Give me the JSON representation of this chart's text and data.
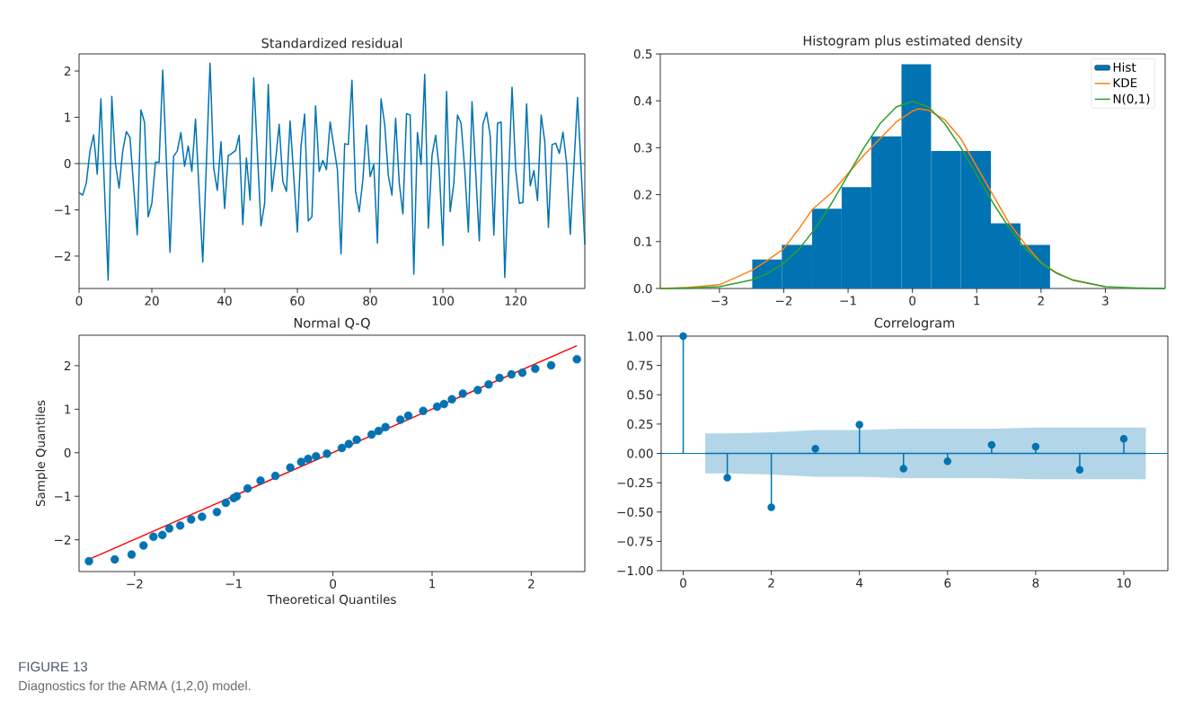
{
  "chart_data": [
    {
      "type": "line",
      "title": "Standardized residual",
      "xlim": [
        0,
        139
      ],
      "ylim": [
        -2.7,
        2.37
      ],
      "xticks": [
        0,
        20,
        40,
        60,
        80,
        100,
        120
      ],
      "yticks": [
        {
          "value": -2,
          "label": "−2"
        },
        {
          "value": -1,
          "label": "−1"
        },
        0,
        1,
        2
      ],
      "ref_lines": [
        {
          "axis": "y",
          "value": 0,
          "color": "#0173b2"
        }
      ],
      "series": [
        {
          "color": "#0173b2",
          "x": [
            0,
            1,
            2,
            3,
            4,
            5,
            6,
            7,
            8,
            9,
            10,
            11,
            12,
            13,
            14,
            15,
            16,
            17,
            18,
            19,
            20,
            21,
            22,
            23,
            24,
            25,
            26,
            27,
            28,
            29,
            30,
            31,
            32,
            33,
            34,
            35,
            36,
            37,
            38,
            39,
            40,
            41,
            42,
            43,
            44,
            45,
            46,
            47,
            48,
            49,
            50,
            51,
            52,
            53,
            54,
            55,
            56,
            57,
            58,
            59,
            60,
            61,
            62,
            63,
            64,
            65,
            66,
            67,
            68,
            69,
            70,
            71,
            72,
            73,
            74,
            75,
            76,
            77,
            78,
            79,
            80,
            81,
            82,
            83,
            84,
            85,
            86,
            87,
            88,
            89,
            90,
            91,
            92,
            93,
            94,
            95,
            96,
            97,
            98,
            99,
            100,
            101,
            102,
            103,
            104,
            105,
            106,
            107,
            108,
            109,
            110,
            111,
            112,
            113,
            114,
            115,
            116,
            117,
            118,
            119,
            120,
            121,
            122,
            123,
            124,
            125,
            126,
            127,
            128,
            129,
            130,
            131,
            132,
            133,
            134,
            135,
            136,
            137,
            138,
            139
          ],
          "values": [
            -0.63,
            -0.68,
            -0.42,
            0.27,
            0.62,
            -0.23,
            1.4,
            -0.56,
            -2.52,
            1.45,
            0.01,
            -0.53,
            0.27,
            0.69,
            0.56,
            -0.49,
            -1.54,
            1.16,
            0.89,
            -1.15,
            -0.86,
            0.03,
            0.03,
            2.02,
            0.05,
            -1.92,
            0.16,
            0.27,
            0.67,
            -0.06,
            0.38,
            -0.17,
            0.96,
            -0.6,
            -2.13,
            0.02,
            2.17,
            -0.1,
            -0.58,
            0.47,
            -0.97,
            0.17,
            0.22,
            0.28,
            0.61,
            -1.32,
            0.12,
            -0.79,
            1.85,
            0.25,
            -1.35,
            -0.86,
            1.71,
            -0.6,
            0.05,
            0.85,
            -0.39,
            -0.6,
            0.92,
            -0.28,
            -1.48,
            0.38,
            1.07,
            -1.24,
            -1.15,
            1.25,
            -0.17,
            0.07,
            -0.13,
            0.9,
            0.38,
            -0.13,
            -1.95,
            0.43,
            0.41,
            1.8,
            -0.6,
            -1.04,
            -0.35,
            0.83,
            -0.28,
            -0.02,
            -1.72,
            1.4,
            0.85,
            -0.26,
            -0.68,
            0.98,
            -0.42,
            -1.09,
            1.08,
            1.05,
            -2.39,
            0.67,
            -0.02,
            1.93,
            -1.4,
            0.17,
            0.61,
            -0.13,
            -1.77,
            1.56,
            -1.04,
            -0.42,
            1.05,
            0.87,
            -0.13,
            -1.48,
            1.34,
            -0.17,
            -1.67,
            0.85,
            1.11,
            0.6,
            -1.55,
            0.87,
            0.9,
            -2.46,
            -0.4,
            1.65,
            -0.13,
            -0.86,
            -0.84,
            1.29,
            -0.48,
            -0.15,
            -0.8,
            1.05,
            0.47,
            -1.38,
            0.41,
            0.44,
            0.22,
            0.68,
            0.01,
            -1.53,
            -0.05,
            1.43,
            -0.16,
            -1.75
          ]
        }
      ]
    },
    {
      "type": "histogram",
      "title": "Histogram plus estimated density",
      "xlim": [
        -3.92,
        3.93
      ],
      "ylim": [
        0,
        0.5
      ],
      "xticks": [
        {
          "value": -3,
          "label": "−3"
        },
        {
          "value": -2,
          "label": "−2"
        },
        {
          "value": -1,
          "label": "−1"
        },
        0,
        1,
        2,
        3
      ],
      "yticks": [
        {
          "value": 0,
          "label": "0.0"
        },
        0.1,
        0.2,
        0.3,
        0.4,
        0.5
      ],
      "bins": [
        -2.49,
        -2.03,
        -1.56,
        -1.1,
        -0.64,
        -0.17,
        0.29,
        0.75,
        1.22,
        1.68,
        2.14
      ],
      "legend": "top right",
      "series": [
        {
          "name": "Hist",
          "type": "histogram",
          "color": "#0173b2",
          "values": [
            0.062,
            0.093,
            0.17,
            0.216,
            0.324,
            0.478,
            0.293,
            0.293,
            0.139,
            0.093
          ]
        },
        {
          "name": "KDE",
          "type": "line",
          "color": "#ff7f0e",
          "x": [
            -3.92,
            -3.5,
            -3,
            -2.49,
            -2.25,
            -2,
            -1.75,
            -1.56,
            -1.25,
            -1,
            -0.75,
            -0.5,
            -0.25,
            0,
            0.1,
            0.25,
            0.5,
            0.75,
            1,
            1.25,
            1.5,
            1.75,
            2,
            2.25,
            2.5,
            3
          ],
          "values": [
            0.0,
            0.002,
            0.008,
            0.039,
            0.06,
            0.085,
            0.13,
            0.168,
            0.205,
            0.245,
            0.285,
            0.32,
            0.355,
            0.378,
            0.383,
            0.38,
            0.36,
            0.32,
            0.26,
            0.2,
            0.14,
            0.095,
            0.055,
            0.033,
            0.017,
            0.004
          ]
        },
        {
          "name": "N(0,1)",
          "type": "line",
          "color": "#2ca02c",
          "x": [
            -3.92,
            -3.5,
            -3,
            -2.5,
            -2.25,
            -2,
            -1.75,
            -1.5,
            -1.25,
            -1,
            -0.75,
            -0.5,
            -0.25,
            0,
            0.25,
            0.5,
            0.75,
            1,
            1.25,
            1.5,
            1.75,
            2,
            2.25,
            2.5,
            3,
            3.5,
            3.93
          ],
          "values": [
            0.0,
            0.001,
            0.004,
            0.018,
            0.032,
            0.054,
            0.086,
            0.13,
            0.183,
            0.242,
            0.301,
            0.352,
            0.387,
            0.399,
            0.387,
            0.352,
            0.301,
            0.242,
            0.183,
            0.13,
            0.086,
            0.054,
            0.032,
            0.018,
            0.004,
            0.001,
            0.0
          ]
        }
      ]
    },
    {
      "type": "scatter",
      "title": "Normal Q-Q",
      "xlabel": "Theoretical Quantiles",
      "ylabel": "Sample Quantiles",
      "xlim": [
        -2.56,
        2.54
      ],
      "ylim": [
        -2.73,
        2.7
      ],
      "xticks": [
        {
          "value": -2,
          "label": "−2"
        },
        {
          "value": -1,
          "label": "−1"
        },
        0,
        1,
        2
      ],
      "yticks": [
        {
          "value": -2,
          "label": "−2"
        },
        {
          "value": -1,
          "label": "−1"
        },
        0,
        1,
        2
      ],
      "series": [
        {
          "type": "scatter",
          "color": "#0173b2",
          "marker": "circle",
          "x": [
            -2.46,
            -2.2,
            -2.03,
            -1.91,
            -1.81,
            -1.72,
            -1.65,
            -1.54,
            -1.43,
            -1.32,
            -1.17,
            -1.08,
            -1.0,
            -0.97,
            -0.86,
            -0.73,
            -0.58,
            -0.43,
            -0.32,
            -0.25,
            -0.17,
            -0.06,
            0.09,
            0.16,
            0.24,
            0.39,
            0.46,
            0.53,
            0.68,
            0.76,
            0.91,
            1.05,
            1.12,
            1.2,
            1.31,
            1.46,
            1.57,
            1.68,
            1.8,
            1.91,
            2.04,
            2.2,
            2.46
          ],
          "values": [
            -2.49,
            -2.45,
            -2.34,
            -2.13,
            -1.93,
            -1.89,
            -1.74,
            -1.67,
            -1.53,
            -1.47,
            -1.36,
            -1.15,
            -1.04,
            -1.0,
            -0.82,
            -0.64,
            -0.53,
            -0.34,
            -0.21,
            -0.14,
            -0.08,
            -0.02,
            0.11,
            0.2,
            0.3,
            0.42,
            0.5,
            0.59,
            0.76,
            0.85,
            0.96,
            1.06,
            1.12,
            1.23,
            1.36,
            1.44,
            1.57,
            1.72,
            1.8,
            1.84,
            1.93,
            2.01,
            2.15
          ]
        },
        {
          "type": "line",
          "color": "#ff0000",
          "x": [
            -2.46,
            2.46
          ],
          "values": [
            -2.45,
            2.46
          ]
        }
      ]
    },
    {
      "type": "lollipop",
      "title": "Correlogram",
      "xlim": [
        -0.5,
        11
      ],
      "ylim": [
        -1,
        1
      ],
      "xticks": [
        0,
        2,
        4,
        6,
        8,
        10
      ],
      "yticks": [
        {
          "value": -1,
          "label": "−1.00"
        },
        {
          "value": -0.75,
          "label": "−0.75"
        },
        {
          "value": -0.5,
          "label": "−0.50"
        },
        {
          "value": -0.25,
          "label": "−0.25"
        },
        {
          "value": 0,
          "label": "0.00"
        },
        {
          "value": 0.25,
          "label": "0.25"
        },
        {
          "value": 0.5,
          "label": "0.50"
        },
        {
          "value": 0.75,
          "label": "0.75"
        },
        {
          "value": 1,
          "label": "1.00"
        }
      ],
      "ref_lines": [
        {
          "axis": "y",
          "value": 0,
          "color": "#0173b2"
        }
      ],
      "annotations": [
        "FIGURE 13",
        "Diagnostics for the ARMA (1,2,0) model."
      ],
      "series": [
        {
          "type": "line",
          "color": "#0173b2",
          "x": [
            0.5,
            1,
            2,
            3,
            4,
            5,
            6,
            7,
            8,
            9,
            10,
            10.5
          ],
          "values": [
            0,
            0,
            0,
            0,
            0,
            0,
            0,
            0,
            0,
            0,
            0,
            0
          ],
          "lower": [
            -0.17,
            -0.17,
            -0.18,
            -0.2,
            -0.2,
            -0.21,
            -0.21,
            -0.21,
            -0.22,
            -0.22,
            -0.22,
            -0.22
          ],
          "upper": [
            0.17,
            0.17,
            0.18,
            0.2,
            0.2,
            0.21,
            0.21,
            0.21,
            0.22,
            0.22,
            0.22,
            0.22
          ]
        },
        {
          "type": "lollipop",
          "color": "#0173b2",
          "marker": "circle",
          "x": [
            0,
            1,
            2,
            3,
            4,
            5,
            6,
            7,
            8,
            9,
            10
          ],
          "values": [
            1.0,
            -0.207,
            -0.46,
            0.04,
            0.245,
            -0.13,
            -0.067,
            0.073,
            0.057,
            -0.14,
            0.124
          ]
        }
      ]
    }
  ]
}
